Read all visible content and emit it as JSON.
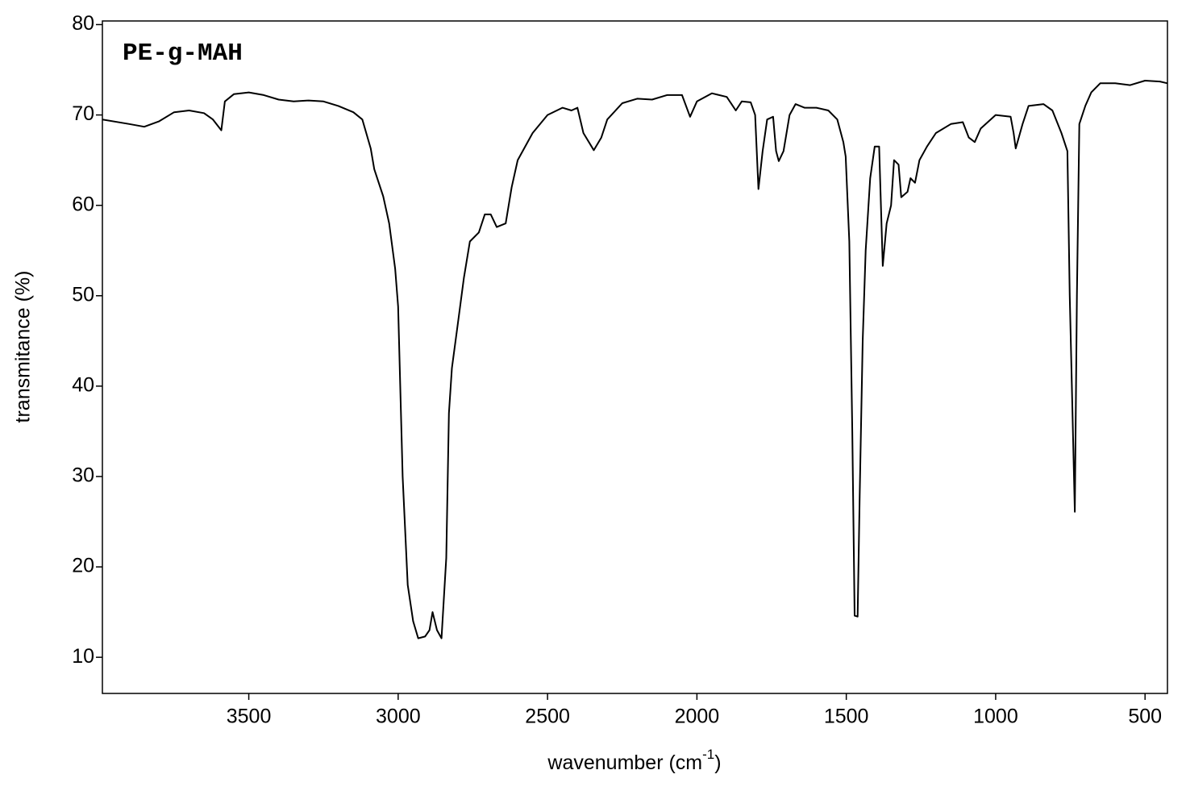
{
  "chart_data": {
    "type": "line",
    "title": "PE-g-MAH",
    "x_label_parts": [
      "wavenumber (cm",
      "-1",
      ")"
    ],
    "y_label": "transmitance (%)",
    "color": "#000000",
    "xlim": [
      3990,
      425
    ],
    "ylim": [
      6,
      80.4
    ],
    "xticks": [
      3500,
      3000,
      2500,
      2000,
      1500,
      1000,
      500
    ],
    "yticks": [
      10,
      20,
      30,
      40,
      50,
      60,
      70,
      80
    ],
    "grid": false,
    "x": [
      3990,
      3900,
      3850,
      3800,
      3750,
      3700,
      3650,
      3620,
      3592,
      3580,
      3550,
      3500,
      3450,
      3400,
      3350,
      3300,
      3250,
      3200,
      3150,
      3120,
      3092,
      3080,
      3050,
      3030,
      3010,
      3000,
      2985,
      2968,
      2950,
      2933,
      2910,
      2895,
      2885,
      2870,
      2855,
      2839,
      2830,
      2820,
      2800,
      2780,
      2760,
      2730,
      2710,
      2690,
      2670,
      2640,
      2620,
      2600,
      2550,
      2500,
      2450,
      2420,
      2400,
      2380,
      2345,
      2320,
      2300,
      2250,
      2200,
      2150,
      2100,
      2050,
      2023,
      2000,
      1950,
      1900,
      1880,
      1870,
      1850,
      1820,
      1805,
      1794,
      1780,
      1765,
      1745,
      1735,
      1726,
      1710,
      1690,
      1670,
      1640,
      1600,
      1560,
      1530,
      1510,
      1502,
      1490,
      1480,
      1472,
      1462,
      1455,
      1445,
      1435,
      1420,
      1405,
      1390,
      1378,
      1365,
      1350,
      1340,
      1325,
      1316,
      1295,
      1285,
      1270,
      1255,
      1230,
      1200,
      1150,
      1110,
      1090,
      1070,
      1050,
      1000,
      950,
      940,
      933,
      910,
      890,
      840,
      810,
      780,
      760,
      752,
      735,
      728,
      720,
      700,
      680,
      650,
      600,
      550,
      500,
      450,
      425
    ],
    "values": [
      69.5,
      69.0,
      68.7,
      69.3,
      70.3,
      70.5,
      70.2,
      69.5,
      68.3,
      71.5,
      72.3,
      72.5,
      72.2,
      71.7,
      71.5,
      71.6,
      71.5,
      71.0,
      70.3,
      69.5,
      66.3,
      64,
      61,
      58,
      53,
      48.8,
      30,
      18,
      14,
      12.1,
      12.3,
      13,
      15,
      13,
      12.1,
      21,
      37,
      42,
      47,
      52,
      56,
      57,
      59,
      59,
      57.6,
      58,
      62,
      65,
      68,
      70,
      70.8,
      70.5,
      70.8,
      68,
      66.1,
      67.5,
      69.5,
      71.3,
      71.8,
      71.7,
      72.2,
      72.2,
      69.8,
      71.5,
      72.4,
      72,
      71,
      70.5,
      71.5,
      71.4,
      70,
      61.8,
      66,
      69.5,
      69.8,
      66,
      64.9,
      66,
      70,
      71.2,
      70.8,
      70.8,
      70.5,
      69.5,
      67,
      65.4,
      56,
      35,
      14.6,
      14.5,
      28,
      45,
      55,
      63,
      66.5,
      66.5,
      53.3,
      58,
      60,
      65,
      64.5,
      60.9,
      61.5,
      63,
      62.5,
      65,
      66.5,
      68,
      69,
      69.2,
      67.5,
      67,
      68.5,
      70,
      69.8,
      68,
      66.3,
      69,
      71,
      71.2,
      70.5,
      68,
      66,
      50,
      26.1,
      50,
      69,
      71,
      72.5,
      73.5,
      73.5,
      73.3,
      73.8,
      73.7,
      73.5
    ]
  }
}
